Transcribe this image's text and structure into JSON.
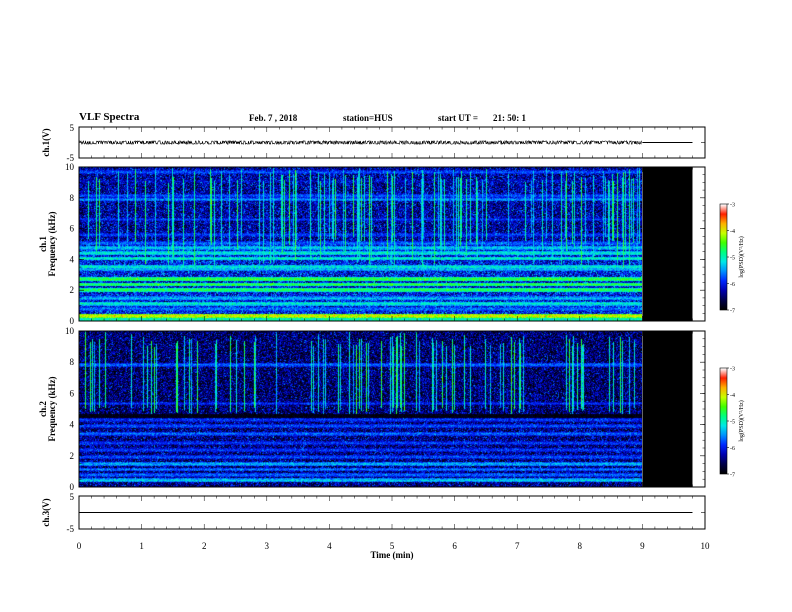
{
  "header": {
    "title": "VLF Spectra",
    "date": "Feb. 7 , 2018",
    "station": "station=HUS",
    "start_label": "start UT =",
    "start_time": "21: 50: 1"
  },
  "colors": {
    "colormap": [
      "#000000",
      "#00004a",
      "#0000b0",
      "#0028ff",
      "#0090ff",
      "#00e8e8",
      "#00ff80",
      "#40ff00",
      "#c8ff00",
      "#ffb000",
      "#ff2000",
      "#ffffff"
    ],
    "background": "#ffffff",
    "no_data": "#000000",
    "trace": "#000000"
  },
  "chart_data": [
    {
      "id": "ch1-waveform",
      "type": "line",
      "ylabel": "ch.1(V)",
      "y_ticks": [
        "5",
        "-5"
      ],
      "ylim": [
        -5,
        5
      ],
      "x_range": [
        0,
        10
      ],
      "series": [
        {
          "level": 0,
          "amplitude": 0.4,
          "data_end": 9.0,
          "flat_end": 9.8
        }
      ]
    },
    {
      "id": "ch1-spectrogram",
      "type": "heatmap",
      "ylabel": "ch.1",
      "ylabel2": "Frequency (kHz)",
      "y_ticks": [
        "0",
        "2",
        "4",
        "6",
        "8",
        "10"
      ],
      "ylim": [
        0,
        10
      ],
      "x_range": [
        0,
        10
      ],
      "data_end_min": 9.0,
      "nodata_end_min": 9.8,
      "colorbar": {
        "label": "log(PSD)(V²/Hz)",
        "ticks": [
          "-3",
          "-4",
          "-5",
          "-6",
          "-7"
        ],
        "range": [
          -7,
          -3
        ]
      },
      "bands": [
        {
          "f": 0.3,
          "psd": -3.9
        },
        {
          "f": 0.75,
          "psd": -5.6
        },
        {
          "f": 1.1,
          "psd": -5.0
        },
        {
          "f": 1.45,
          "psd": -5.3
        },
        {
          "f": 2.0,
          "psd": -4.6
        },
        {
          "f": 2.35,
          "psd": -4.6
        },
        {
          "f": 2.7,
          "psd": -4.5
        },
        {
          "f": 3.35,
          "psd": -5.3
        },
        {
          "f": 3.5,
          "psd": -5.0
        },
        {
          "f": 4.05,
          "psd": -5.0
        },
        {
          "f": 4.4,
          "psd": -5.0
        },
        {
          "f": 4.75,
          "psd": -5.2
        },
        {
          "f": 5.05,
          "psd": -5.6
        },
        {
          "f": 5.6,
          "psd": -5.8
        },
        {
          "f": 6.6,
          "psd": -5.9
        },
        {
          "f": 7.9,
          "psd": -5.5
        },
        {
          "f": 8.15,
          "psd": -5.7
        },
        {
          "f": 9.1,
          "psd": -6.2
        },
        {
          "f": 9.7,
          "psd": -5.7
        }
      ]
    },
    {
      "id": "ch2-spectrogram",
      "type": "heatmap",
      "ylabel": "ch.2",
      "ylabel2": "Frequency (kHz)",
      "y_ticks": [
        "0",
        "2",
        "4",
        "6",
        "8",
        "10"
      ],
      "ylim": [
        0,
        10
      ],
      "x_range": [
        0,
        10
      ],
      "data_end_min": 9.0,
      "nodata_end_min": 9.8,
      "colorbar": {
        "label": "log(PSD)(V²/Hz)",
        "ticks": [
          "-3",
          "-4",
          "-5",
          "-6",
          "-7"
        ],
        "range": [
          -7,
          -3
        ]
      },
      "bands": [
        {
          "f": 0.4,
          "psd": -5.2
        },
        {
          "f": 0.75,
          "psd": -5.6
        },
        {
          "f": 1.1,
          "psd": -5.6
        },
        {
          "f": 1.45,
          "psd": -5.3
        },
        {
          "f": 1.9,
          "psd": -5.7
        },
        {
          "f": 2.35,
          "psd": -5.8
        },
        {
          "f": 2.8,
          "psd": -5.8
        },
        {
          "f": 3.4,
          "psd": -5.6
        },
        {
          "f": 3.9,
          "psd": -5.7
        },
        {
          "f": 4.3,
          "psd": -5.8
        },
        {
          "f": 5.35,
          "psd": -5.9
        },
        {
          "f": 7.85,
          "psd": -5.6
        }
      ]
    },
    {
      "id": "ch3-waveform",
      "type": "line",
      "ylabel": "ch.3(V)",
      "y_ticks": [
        "5",
        "-5"
      ],
      "ylim": [
        -5,
        5
      ],
      "x_range": [
        0,
        10
      ],
      "series": [
        {
          "level": 0,
          "amplitude": 0,
          "data_end": 9.8
        }
      ]
    }
  ],
  "x_axis": {
    "label": "Time (min)",
    "ticks": [
      "0",
      "1",
      "2",
      "3",
      "4",
      "5",
      "6",
      "7",
      "8",
      "9",
      "10"
    ],
    "range": [
      0,
      10
    ]
  }
}
